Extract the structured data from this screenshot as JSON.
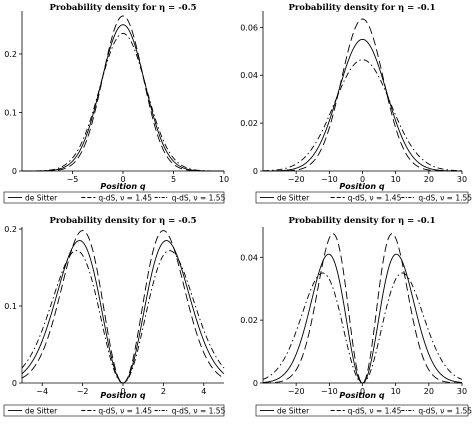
{
  "legend": [
    {
      "label": "de Sitter",
      "dash": "solid"
    },
    {
      "label": "q-dS, ν = 1.45",
      "dash": "long-dash"
    },
    {
      "label": "q-dS, ν = 1.55",
      "dash": "dash-dot"
    }
  ],
  "chart_data": [
    {
      "type": "line",
      "title": "Probability density for η = -0.5",
      "xlabel": "Position q",
      "ylabel": "",
      "xlim": [
        -10,
        10
      ],
      "ylim": [
        0,
        0.27
      ],
      "xticks": [
        -5,
        0,
        5,
        10
      ],
      "yticks": [
        0,
        0.1,
        0.2
      ],
      "legend_position": "bottom",
      "shape": "single-peak",
      "series": [
        {
          "name": "de Sitter",
          "peak_y": 0.25,
          "peak_x": [
            0
          ],
          "width": 2.15
        },
        {
          "name": "q-dS, ν = 1.45",
          "peak_y": 0.265,
          "peak_x": [
            0
          ],
          "width": 2.0
        },
        {
          "name": "q-dS, ν = 1.55",
          "peak_y": 0.235,
          "peak_x": [
            0
          ],
          "width": 2.3
        }
      ]
    },
    {
      "type": "line",
      "title": "Probability density for η = -0.1",
      "xlabel": "Position q",
      "ylabel": "",
      "xlim": [
        -30,
        30
      ],
      "ylim": [
        0,
        0.066
      ],
      "xticks": [
        -20,
        -10,
        0,
        10,
        20,
        30
      ],
      "yticks": [
        0,
        0.02,
        0.04,
        0.06
      ],
      "legend_position": "bottom",
      "shape": "single-peak",
      "series": [
        {
          "name": "de Sitter",
          "peak_y": 0.055,
          "peak_x": [
            0
          ],
          "width": 7.2
        },
        {
          "name": "q-dS, ν = 1.45",
          "peak_y": 0.0635,
          "peak_x": [
            0
          ],
          "width": 6.3
        },
        {
          "name": "q-dS, ν = 1.55",
          "peak_y": 0.0465,
          "peak_x": [
            0
          ],
          "width": 8.5
        }
      ]
    },
    {
      "type": "line",
      "title": "Probability density for η = -0.5",
      "xlabel": "Position q",
      "ylabel": "",
      "xlim": [
        -5,
        5
      ],
      "ylim": [
        0,
        0.2
      ],
      "xticks": [
        -4,
        -2,
        0,
        2,
        4
      ],
      "yticks": [
        0,
        0.1,
        0.2
      ],
      "legend_position": "bottom",
      "shape": "double-peak",
      "series": [
        {
          "name": "de Sitter",
          "peak_y": 0.185,
          "peak_x": [
            -2.15,
            2.15
          ],
          "width": 1.52
        },
        {
          "name": "q-dS, ν = 1.45",
          "peak_y": 0.198,
          "peak_x": [
            -2.0,
            2.0
          ],
          "width": 1.41
        },
        {
          "name": "q-dS, ν = 1.55",
          "peak_y": 0.172,
          "peak_x": [
            -2.3,
            2.3
          ],
          "width": 1.63
        }
      ]
    },
    {
      "type": "line",
      "title": "Probability density for η = -0.1",
      "xlabel": "Position q",
      "ylabel": "",
      "xlim": [
        -30,
        30
      ],
      "ylim": [
        0,
        0.049
      ],
      "xticks": [
        -20,
        -10,
        0,
        10,
        20,
        30
      ],
      "yticks": [
        0,
        0.02,
        0.04
      ],
      "legend_position": "bottom",
      "shape": "double-peak",
      "series": [
        {
          "name": "de Sitter",
          "peak_y": 0.041,
          "peak_x": [
            -10.2,
            10.2
          ],
          "width": 7.2
        },
        {
          "name": "q-dS, ν = 1.45",
          "peak_y": 0.0475,
          "peak_x": [
            -8.9,
            8.9
          ],
          "width": 6.3
        },
        {
          "name": "q-dS, ν = 1.55",
          "peak_y": 0.035,
          "peak_x": [
            -12.0,
            12.0
          ],
          "width": 8.5
        }
      ]
    }
  ]
}
